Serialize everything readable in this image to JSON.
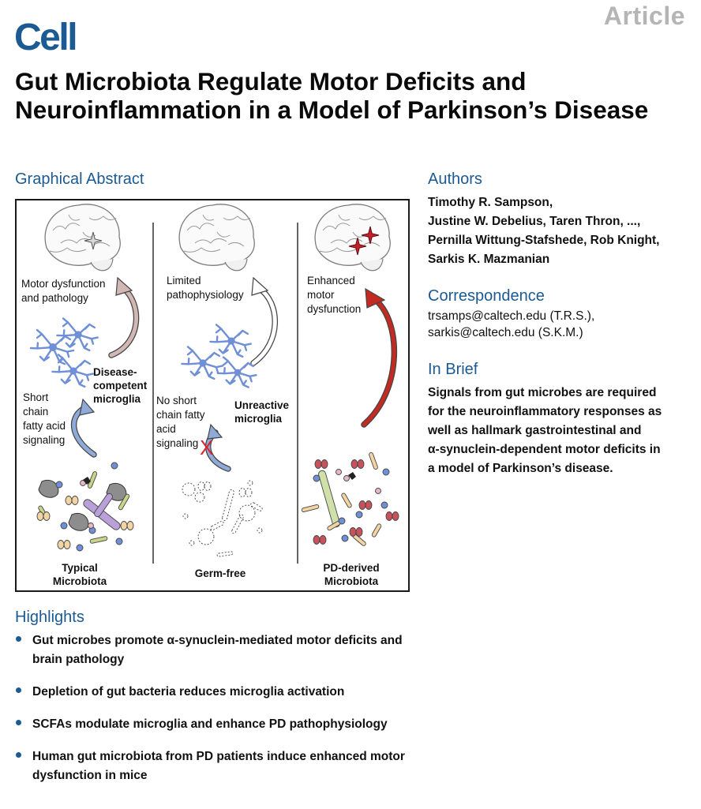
{
  "header": {
    "journal": "Cell",
    "article_type": "Article",
    "title": "Gut Microbiota Regulate Motor Deficits and Neuroinflammation in a Model of Parkinson’s Disease"
  },
  "graphical_abstract": {
    "heading": "Graphical Abstract",
    "panels": [
      {
        "outcome_lines": [
          "Motor dysfunction",
          "and pathology"
        ],
        "microglia_lines": [
          "Disease-",
          "competent",
          "microglia"
        ],
        "signaling_lines": [
          "Short",
          "chain",
          "fatty acid",
          "signaling"
        ],
        "microbiota_lines": [
          "Typical",
          "Microbiota"
        ]
      },
      {
        "outcome_lines": [
          "Limited",
          "pathophysiology"
        ],
        "microglia_lines": [
          "Unreactive",
          "microglia"
        ],
        "signaling_lines": [
          "No short",
          "chain fatty",
          "acid",
          "signaling"
        ],
        "blocked_mark": "X",
        "microbiota_lines": [
          "Germ-free"
        ]
      },
      {
        "outcome_lines": [
          "Enhanced",
          "motor",
          "dysfunction"
        ],
        "microbiota_lines": [
          "PD-derived",
          "Microbiota"
        ]
      }
    ],
    "colors": {
      "panel1_arrow": "#d2b8b5",
      "panel2_arrow": "#ffffff",
      "panel3_arrow": "#c22a22",
      "signal_arrow": "#8faad8",
      "microglia": "#6f8fd6",
      "star": "#c8202a"
    }
  },
  "authors": {
    "heading": "Authors",
    "lines": [
      "Timothy R. Sampson,",
      "Justine W. Debelius, Taren Thron, ...,",
      "Pernilla Wittung-Stafshede, Rob Knight,",
      "Sarkis K. Mazmanian"
    ]
  },
  "correspondence": {
    "heading": "Correspondence",
    "lines": [
      "trsamps@caltech.edu (T.R.S.),",
      "sarkis@caltech.edu (S.K.M.)"
    ]
  },
  "in_brief": {
    "heading": "In Brief",
    "lines": [
      "Signals from gut microbes are required",
      "for the neuroinflammatory responses as",
      "well as hallmark gastrointestinal and",
      "α-synuclein-dependent motor deficits in",
      "a model of Parkinson’s disease."
    ]
  },
  "highlights": {
    "heading": "Highlights",
    "items": [
      "Gut microbes promote α-synuclein-mediated motor deficits and brain pathology",
      "Depletion of gut bacteria reduces microglia activation",
      "SCFAs modulate microglia and enhance PD pathophysiology",
      "Human gut microbiota from PD patients induce enhanced motor dysfunction in mice"
    ]
  }
}
